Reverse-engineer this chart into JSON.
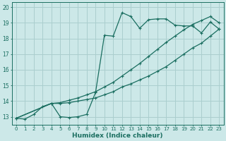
{
  "xlabel": "Humidex (Indice chaleur)",
  "xlim": [
    -0.5,
    23.5
  ],
  "ylim": [
    12.5,
    20.3
  ],
  "xticks": [
    0,
    1,
    2,
    3,
    4,
    5,
    6,
    7,
    8,
    9,
    10,
    11,
    12,
    13,
    14,
    15,
    16,
    17,
    18,
    19,
    20,
    21,
    22,
    23
  ],
  "yticks": [
    13,
    14,
    15,
    16,
    17,
    18,
    19,
    20
  ],
  "bg_color": "#cce8e8",
  "grid_color": "#aacece",
  "line_color": "#1a6e60",
  "line1_x": [
    0,
    1,
    2,
    3,
    4,
    5,
    6,
    7,
    8,
    9,
    10,
    11,
    12,
    13,
    14,
    15,
    16,
    17,
    18,
    19,
    20,
    21,
    22,
    23
  ],
  "line1_y": [
    12.9,
    12.85,
    13.15,
    13.65,
    13.85,
    13.0,
    12.95,
    13.0,
    13.15,
    14.55,
    18.2,
    18.15,
    19.65,
    19.4,
    18.65,
    19.2,
    19.25,
    19.25,
    18.85,
    18.8,
    18.8,
    18.35,
    19.05,
    18.6
  ],
  "line2_x": [
    0,
    4,
    5,
    6,
    7,
    8,
    9,
    10,
    11,
    12,
    13,
    14,
    15,
    16,
    17,
    18,
    19,
    20,
    21,
    22,
    23
  ],
  "line2_y": [
    12.9,
    13.85,
    13.85,
    13.9,
    14.0,
    14.1,
    14.2,
    14.4,
    14.6,
    14.9,
    15.1,
    15.35,
    15.6,
    15.9,
    16.2,
    16.6,
    17.0,
    17.4,
    17.7,
    18.15,
    18.6
  ],
  "line3_x": [
    0,
    4,
    5,
    6,
    7,
    8,
    9,
    10,
    11,
    12,
    13,
    14,
    15,
    16,
    17,
    18,
    19,
    20,
    21,
    22,
    23
  ],
  "line3_y": [
    12.9,
    13.85,
    13.9,
    14.05,
    14.2,
    14.4,
    14.6,
    14.9,
    15.2,
    15.6,
    16.0,
    16.4,
    16.85,
    17.3,
    17.75,
    18.15,
    18.55,
    18.9,
    19.15,
    19.4,
    19.0
  ]
}
